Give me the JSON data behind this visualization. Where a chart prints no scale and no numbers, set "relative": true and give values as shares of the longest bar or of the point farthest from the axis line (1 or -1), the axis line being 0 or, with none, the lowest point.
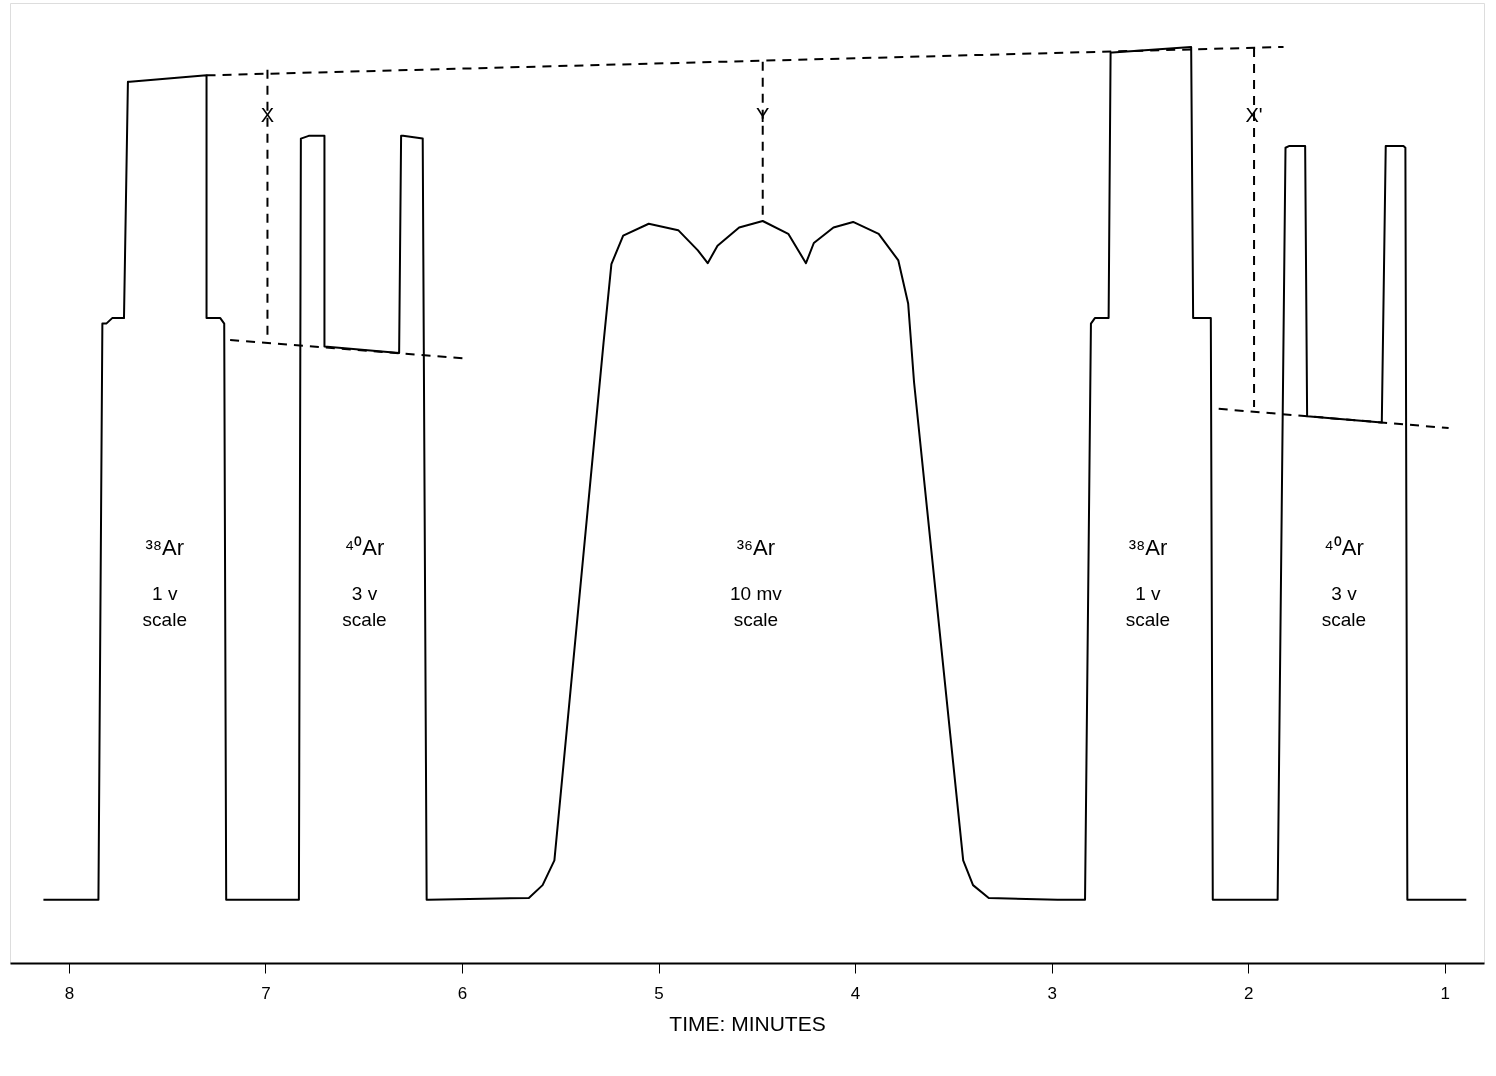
{
  "chart_data": {
    "type": "line",
    "relative": true,
    "xlabel": "TIME: MINUTES",
    "xlim": [
      8.3,
      0.8
    ],
    "xticks": [
      8,
      7,
      6,
      5,
      4,
      3,
      2,
      1
    ],
    "grid": false,
    "series": [
      {
        "color": "#000000",
        "line_style": "solid",
        "x": [
          8.13,
          7.85,
          7.83,
          7.81,
          7.78,
          7.72,
          7.7,
          7.69,
          7.3,
          7.3,
          7.23,
          7.21,
          7.2,
          7.19,
          6.83,
          6.82,
          6.78,
          6.7,
          6.7,
          6.32,
          6.31,
          6.3,
          6.2,
          6.18,
          6.17,
          5.66,
          5.59,
          5.53,
          5.28,
          5.24,
          5.18,
          5.05,
          4.9,
          4.8,
          4.75,
          4.7,
          4.59,
          4.47,
          4.34,
          4.25,
          4.21,
          4.11,
          4.01,
          3.88,
          3.78,
          3.73,
          3.7,
          3.45,
          3.4,
          3.32,
          2.97,
          2.83,
          2.8,
          2.78,
          2.71,
          2.7,
          2.69,
          2.29,
          2.28,
          2.19,
          2.18,
          2.16,
          1.85,
          1.81,
          1.79,
          1.71,
          1.7,
          1.32,
          1.3,
          1.29,
          1.21,
          1.2,
          1.19,
          0.89
        ],
        "values": [
          0.069,
          0.069,
          0.698,
          0.698,
          0.704,
          0.704,
          0.962,
          0.962,
          0.969,
          0.704,
          0.704,
          0.698,
          0.069,
          0.069,
          0.069,
          0.9,
          0.903,
          0.903,
          0.673,
          0.666,
          0.903,
          0.903,
          0.9,
          0.069,
          0.069,
          0.071,
          0.085,
          0.112,
          0.677,
          0.763,
          0.794,
          0.807,
          0.8,
          0.778,
          0.764,
          0.783,
          0.803,
          0.81,
          0.796,
          0.764,
          0.786,
          0.803,
          0.809,
          0.796,
          0.767,
          0.72,
          0.634,
          0.112,
          0.085,
          0.071,
          0.069,
          0.069,
          0.698,
          0.704,
          0.704,
          0.994,
          0.994,
          1,
          0.704,
          0.704,
          0.069,
          0.069,
          0.069,
          0.89,
          0.892,
          0.892,
          0.597,
          0.59,
          0.892,
          0.892,
          0.892,
          0.89,
          0.069,
          0.069
        ]
      },
      {
        "color": "#000000",
        "line_style": "dashed",
        "x": [
          7.3,
          1.82
        ],
        "values": [
          0.969,
          1
        ]
      },
      {
        "color": "#000000",
        "line_style": "dashed",
        "x": [
          7.18,
          5.98
        ],
        "values": [
          0.68,
          0.66
        ]
      },
      {
        "color": "#000000",
        "line_style": "dashed",
        "x": [
          2.15,
          0.98
        ],
        "values": [
          0.605,
          0.584
        ]
      },
      {
        "color": "#000000",
        "line_style": "dashed",
        "x": [
          6.99,
          6.99
        ],
        "values": [
          0.975,
          0.683
        ]
      },
      {
        "color": "#000000",
        "line_style": "dashed",
        "x": [
          4.47,
          4.47
        ],
        "values": [
          0.984,
          0.81
        ]
      },
      {
        "color": "#000000",
        "line_style": "dashed",
        "x": [
          1.97,
          1.97
        ],
        "values": [
          0.999,
          0.607
        ]
      }
    ],
    "annotations": [
      {
        "text": "X",
        "x": 6.99,
        "y": 0.925
      },
      {
        "text": "Y",
        "x": 4.47,
        "y": 0.925
      },
      {
        "text": "X'",
        "x": 1.97,
        "y": 0.925
      },
      "³⁸Ar",
      "1 v",
      "scale",
      "⁴⁰Ar",
      "3 v",
      "scale",
      "³⁶Ar",
      "10 mv",
      "scale",
      "³⁸Ar",
      "1 v",
      "scale",
      "⁴⁰Ar",
      "3 v",
      "scale"
    ]
  }
}
